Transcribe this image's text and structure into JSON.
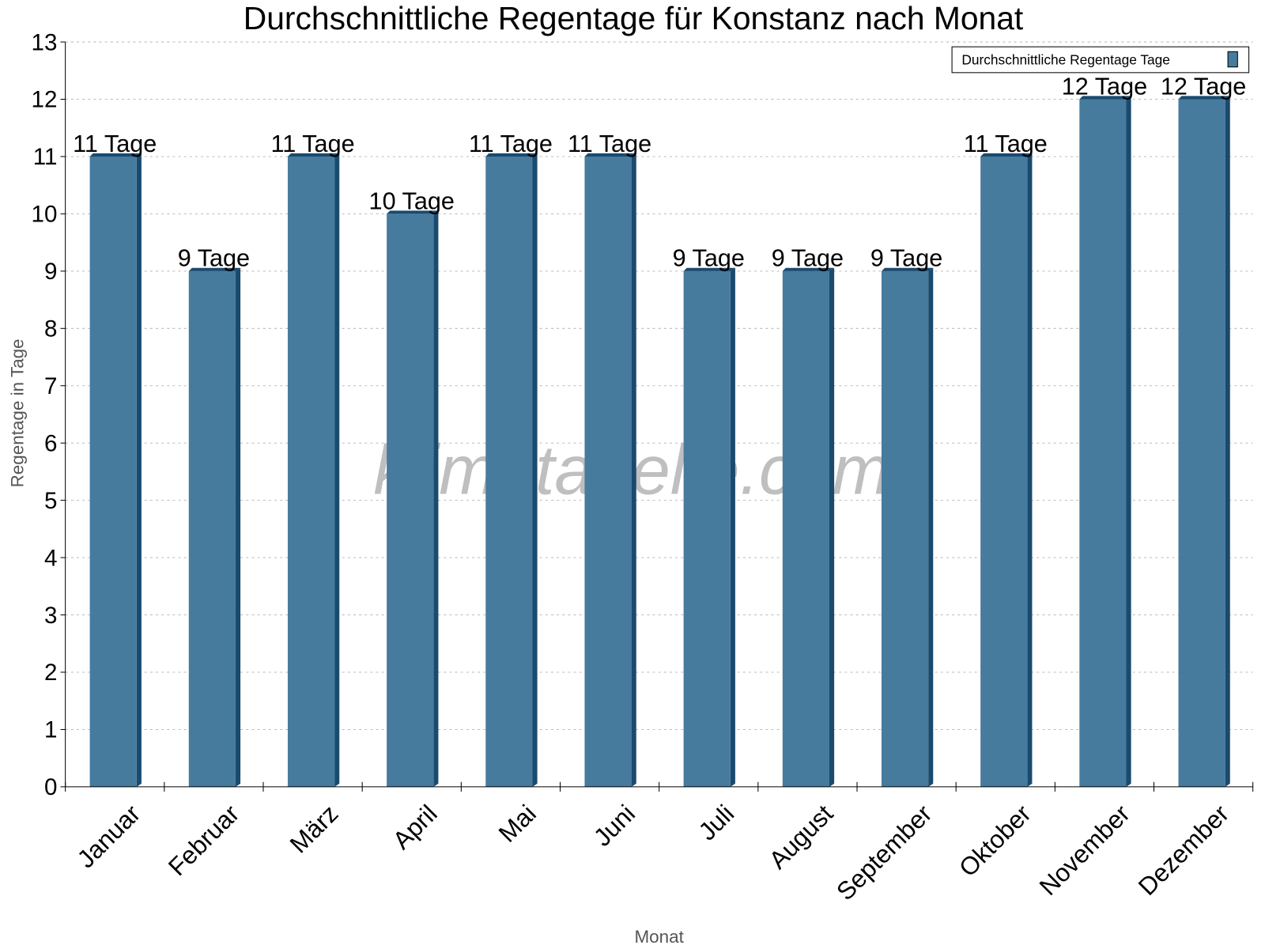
{
  "chart_data": {
    "type": "bar",
    "title": "Durchschnittliche Regentage für Konstanz nach Monat",
    "xlabel": "Monat",
    "ylabel": "Regentage in Tage",
    "categories": [
      "Januar",
      "Februar",
      "März",
      "April",
      "Mai",
      "Juni",
      "Juli",
      "August",
      "September",
      "Oktober",
      "November",
      "Dezember"
    ],
    "series": [
      {
        "name": "Durchschnittliche Regentage Tage",
        "values": [
          11,
          9,
          11,
          10,
          11,
          11,
          9,
          9,
          9,
          11,
          12,
          12
        ],
        "color": "#467b9e",
        "side_color": "#1a4a6e"
      }
    ],
    "data_labels": [
      "11 Tage",
      "9 Tage",
      "11 Tage",
      "10 Tage",
      "11 Tage",
      "11 Tage",
      "9 Tage",
      "9 Tage",
      "9 Tage",
      "11 Tage",
      "12 Tage",
      "12 Tage"
    ],
    "ylim": [
      0,
      13
    ],
    "yticks": [
      0,
      1,
      2,
      3,
      4,
      5,
      6,
      7,
      8,
      9,
      10,
      11,
      12,
      13
    ],
    "grid": true,
    "legend_position": "top-right",
    "watermark": "klimatabelle.com"
  }
}
